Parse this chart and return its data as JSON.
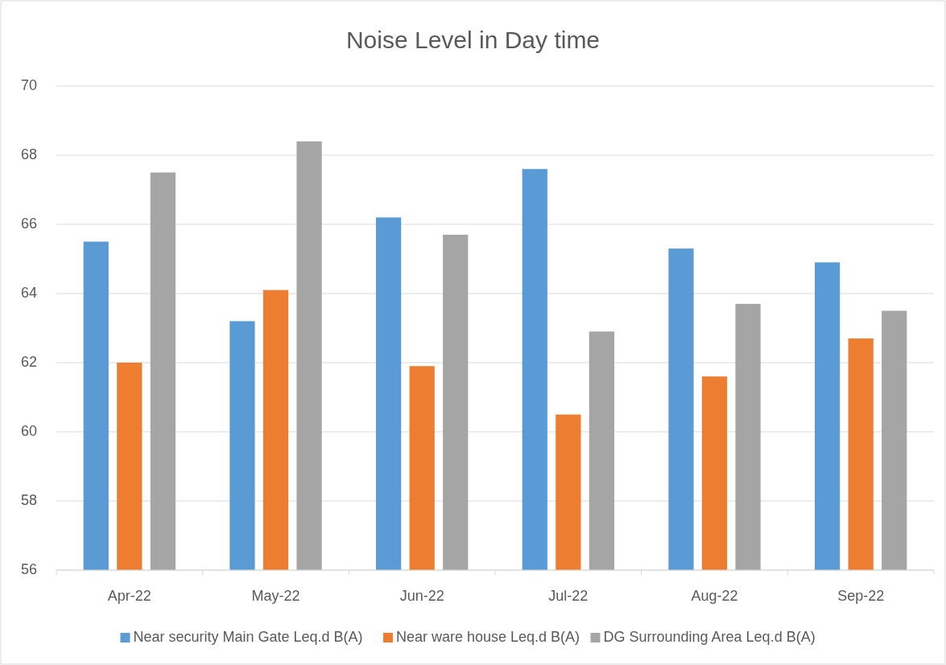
{
  "chart_data": {
    "type": "bar",
    "title": "Noise Level in Day time",
    "categories": [
      "Apr-22",
      "May-22",
      "Jun-22",
      "Jul-22",
      "Aug-22",
      "Sep-22"
    ],
    "series": [
      {
        "name": "Near security Main Gate Leq.d B(A)",
        "color": "#5b9bd5",
        "values": [
          65.5,
          63.2,
          66.2,
          67.6,
          65.3,
          64.9
        ]
      },
      {
        "name": "Near ware house Leq.d B(A)",
        "color": "#ed7d31",
        "values": [
          62.0,
          64.1,
          61.9,
          60.5,
          61.6,
          62.7
        ]
      },
      {
        "name": "DG Surrounding Area Leq.d B(A)",
        "color": "#a5a5a5",
        "values": [
          67.5,
          68.4,
          65.7,
          62.9,
          63.7,
          63.5
        ]
      }
    ],
    "ylim": [
      56,
      70
    ],
    "yticks": [
      56,
      58,
      60,
      62,
      64,
      66,
      68,
      70
    ],
    "grid": "y",
    "legend": "bottom"
  }
}
